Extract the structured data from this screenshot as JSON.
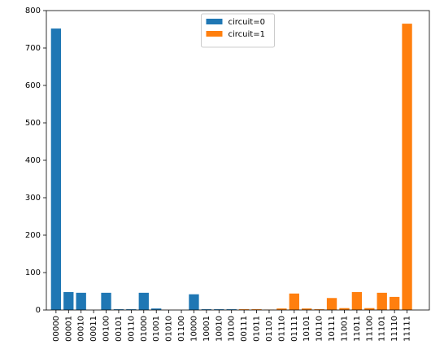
{
  "chart_data": {
    "type": "bar",
    "categories": [
      "00000",
      "00001",
      "00010",
      "00011",
      "00100",
      "00101",
      "00110",
      "01000",
      "01001",
      "01010",
      "01100",
      "10000",
      "10001",
      "10010",
      "10100",
      "00111",
      "01011",
      "01101",
      "01110",
      "01111",
      "10101",
      "10110",
      "10111",
      "11001",
      "11011",
      "11100",
      "11101",
      "11110",
      "11111"
    ],
    "series": [
      {
        "name": "circuit=0",
        "color": "#1f77b4",
        "values": [
          752,
          48,
          46,
          0,
          46,
          2,
          2,
          46,
          4,
          0,
          0,
          42,
          2,
          2,
          2,
          null,
          null,
          null,
          null,
          null,
          null,
          null,
          null,
          null,
          null,
          null,
          null,
          null,
          null
        ]
      },
      {
        "name": "circuit=1",
        "color": "#ff7f0e",
        "values": [
          null,
          null,
          null,
          null,
          null,
          null,
          null,
          null,
          null,
          null,
          null,
          null,
          null,
          null,
          null,
          2,
          2,
          1,
          4,
          44,
          4,
          2,
          32,
          5,
          48,
          5,
          46,
          35,
          765
        ]
      }
    ],
    "ylim": [
      0,
      800
    ],
    "yticks": [
      0,
      100,
      200,
      300,
      400,
      500,
      600,
      700,
      800
    ],
    "legend": "upper center",
    "grid": false
  }
}
